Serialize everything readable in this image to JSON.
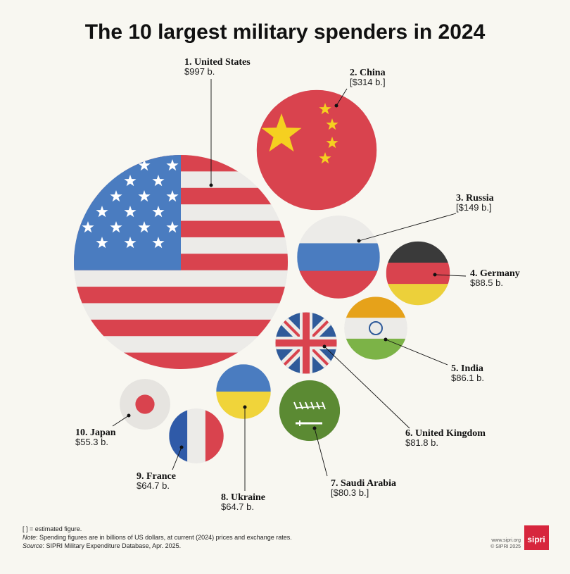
{
  "chart_data": {
    "type": "bubble",
    "title": "The 10 largest military spenders in 2024",
    "categories": [
      "1. United States",
      "2. China",
      "3. Russia",
      "4. Germany",
      "5. India",
      "6. United Kingdom",
      "7. Saudi Arabia",
      "8. Ukraine",
      "9. France",
      "10. Japan"
    ],
    "values": [
      997,
      314,
      149,
      88.5,
      86.1,
      81.8,
      80.3,
      64.7,
      64.7,
      55.3
    ],
    "value_labels": [
      "$997 b.",
      "[$314 b.]",
      "[$149 b.]",
      "$88.5 b.",
      "$86.1 b.",
      "$81.8 b.",
      "[$80.3 b.]",
      "$64.7 b.",
      "$64.7 b.",
      "$55.3 b."
    ]
  },
  "footer": {
    "legend": "[ ] = estimated figure.",
    "note_label": "Note",
    "note_text": ": Spending figures are in billions of US dollars, at current (2024) prices and exchange rates.",
    "source_label": "Source",
    "source_text": ": SIPRI Military Expenditure Database, Apr. 2025."
  },
  "logo": {
    "text": "sipri",
    "url": "www.sipri.org",
    "copyright": "© SIPRI 2025"
  }
}
